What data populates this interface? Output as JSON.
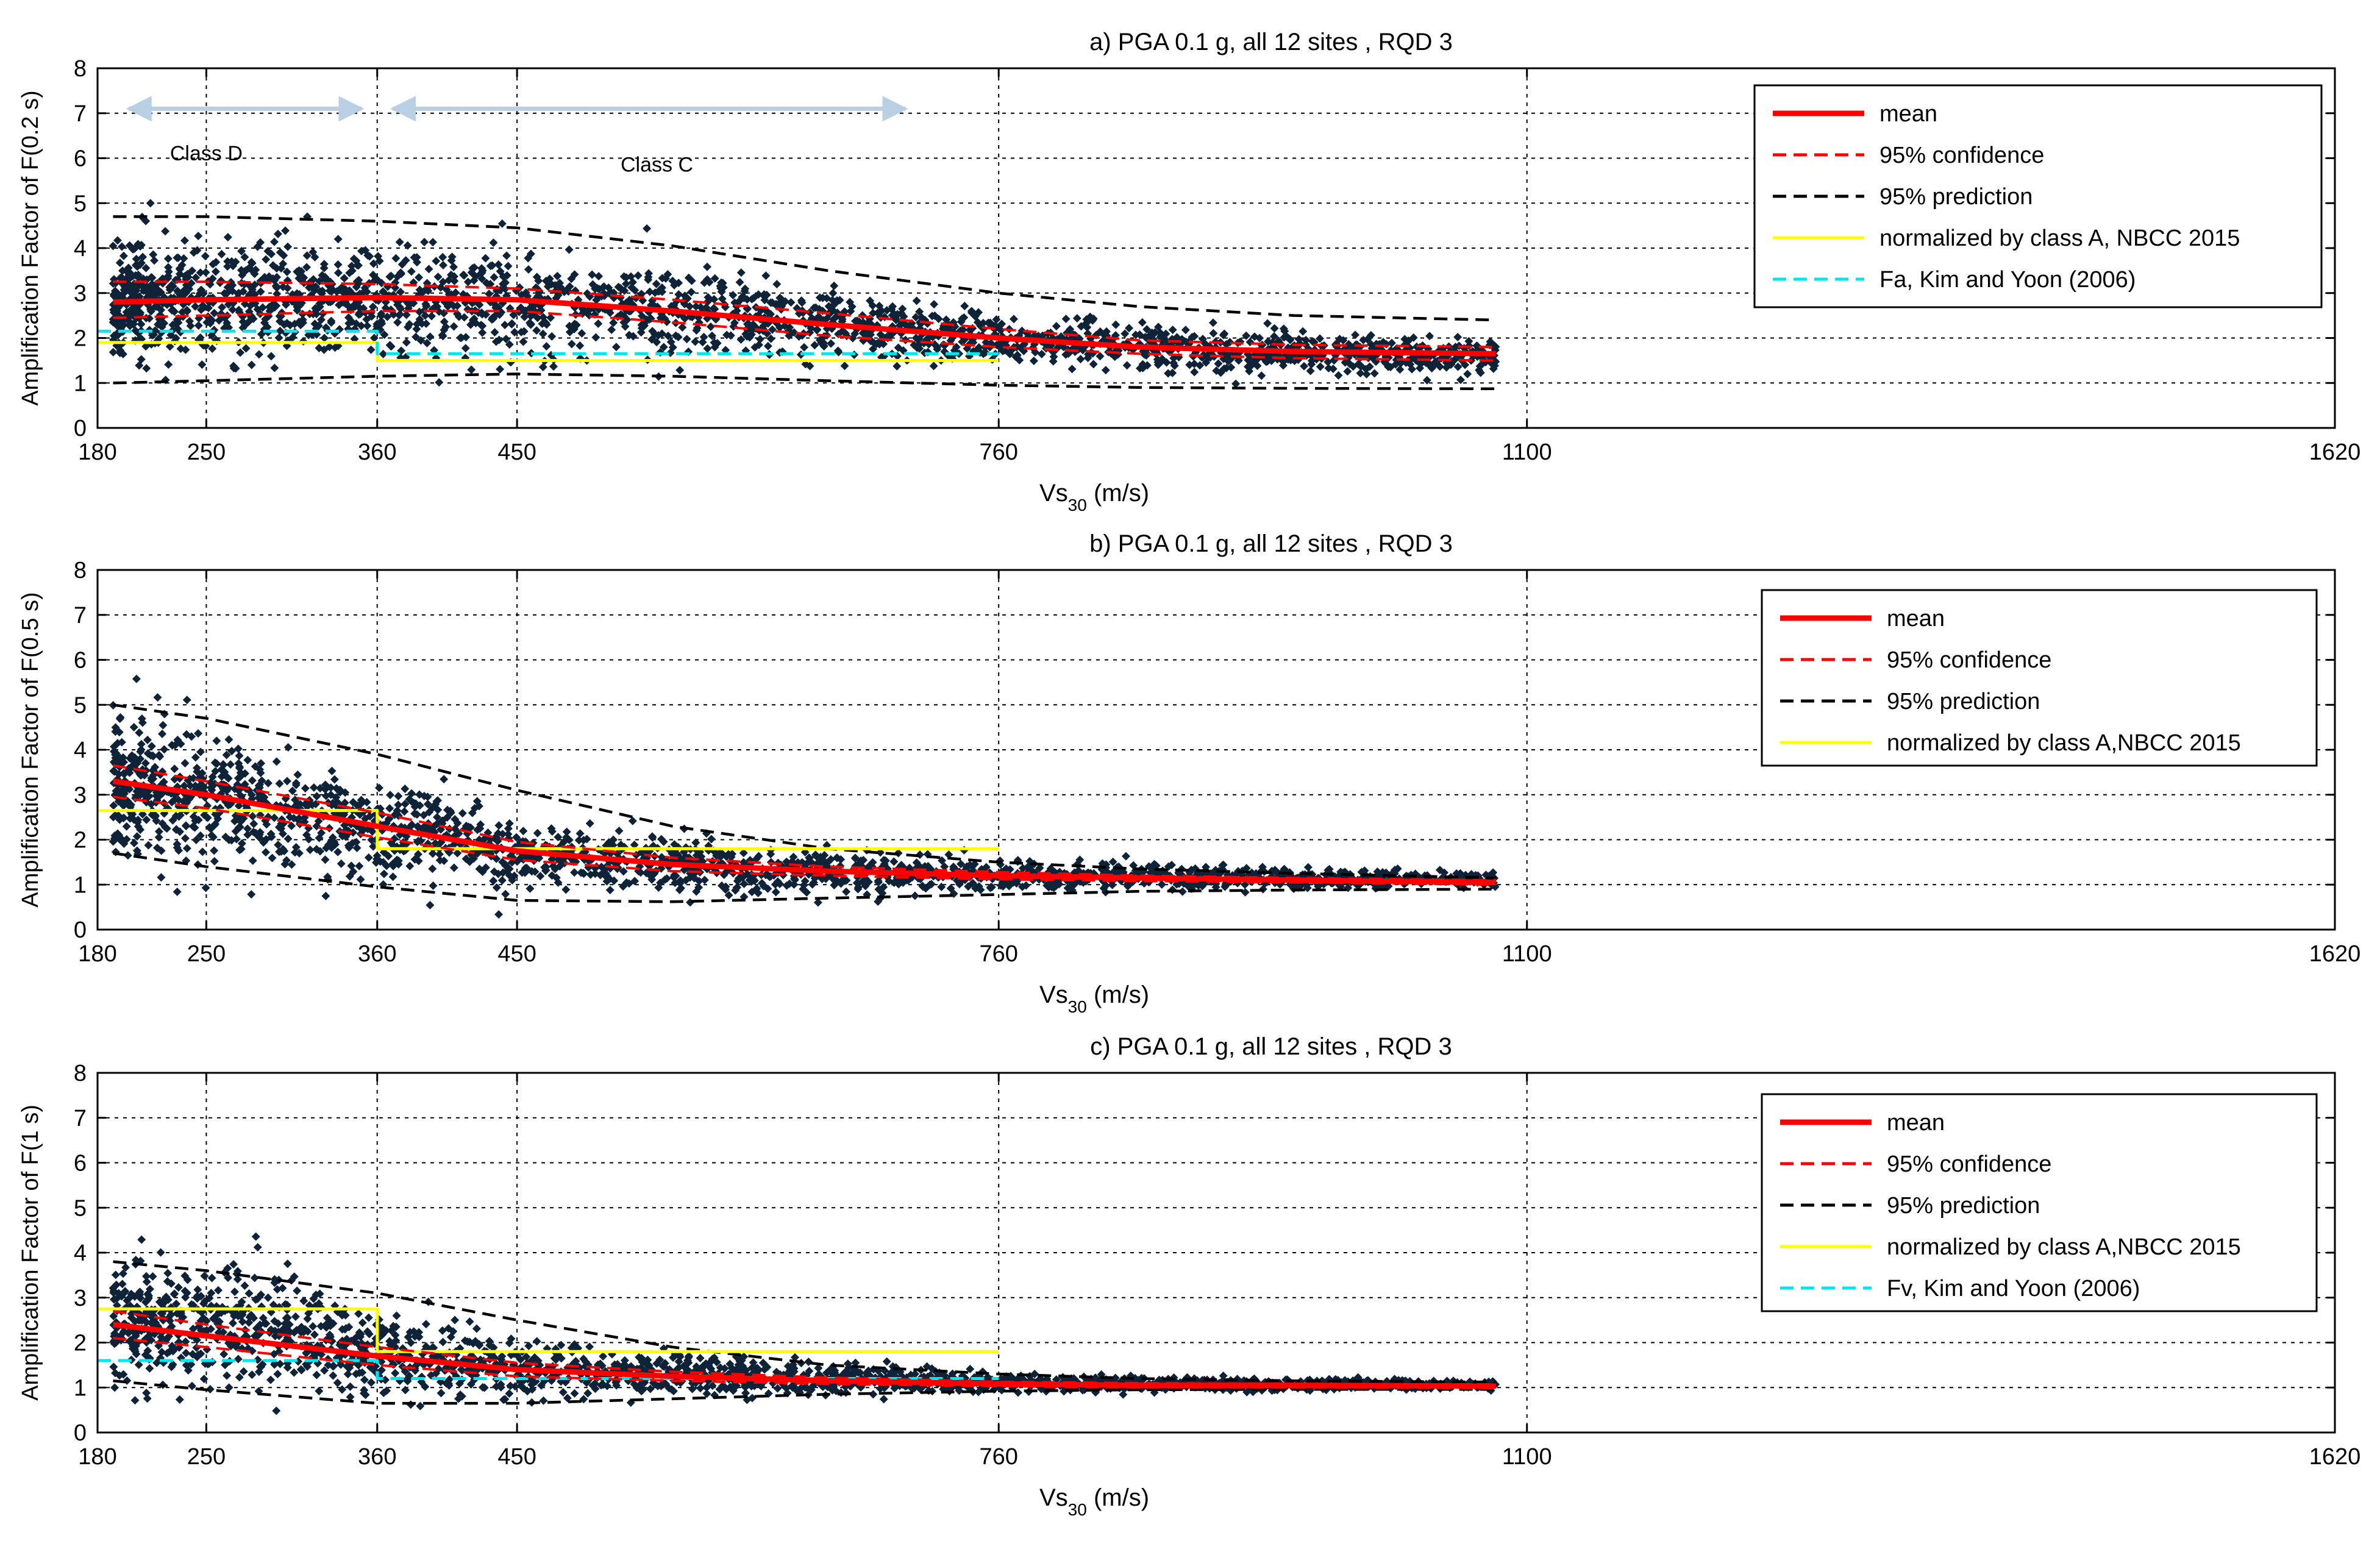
{
  "figure": {
    "note": "Three stacked scatter plots of amplification factor versus Vs30"
  },
  "chart_data": [
    {
      "type": "scatter",
      "title": "a) PGA 0.1 g, all 12 sites , RQD 3",
      "ylabel": "Amplification Factor of F(0.2 s)",
      "xlabel_main": "Vs",
      "xlabel_sub": "30",
      "xlabel_unit": " (m/s)",
      "xlim": [
        180,
        1620
      ],
      "ylim": [
        0,
        8
      ],
      "xticks": [
        180,
        250,
        360,
        450,
        760,
        1100,
        1620
      ],
      "yticks": [
        0,
        1,
        2,
        3,
        4,
        5,
        6,
        7,
        8
      ],
      "annotations": [
        {
          "text": "Class D",
          "x": 250,
          "y": 5.95
        },
        {
          "text": "Class C",
          "x": 540,
          "y": 5.7
        }
      ],
      "class_arrows": [
        {
          "from": 200,
          "to": 350,
          "y": 7.1
        },
        {
          "from": 370,
          "to": 700,
          "y": 7.1
        }
      ],
      "scatter": {
        "x_range": [
          190,
          1080
        ],
        "count": 2200,
        "seed": 11,
        "mean": [
          [
            190,
            2.8
          ],
          [
            360,
            2.9
          ],
          [
            550,
            2.6
          ],
          [
            760,
            2.0
          ],
          [
            900,
            1.7
          ],
          [
            1080,
            1.6
          ]
        ],
        "spread": [
          [
            190,
            1.0
          ],
          [
            450,
            0.9
          ],
          [
            760,
            0.45
          ],
          [
            1080,
            0.3
          ]
        ]
      },
      "series": [
        {
          "name": "mean",
          "role": "mean",
          "color": "#ff0000",
          "x": [
            190,
            250,
            360,
            450,
            550,
            650,
            760,
            850,
            950,
            1080
          ],
          "y": [
            2.8,
            2.85,
            2.9,
            2.85,
            2.6,
            2.3,
            2.0,
            1.8,
            1.7,
            1.65
          ]
        },
        {
          "name": "95% confidence",
          "role": "conf-upper",
          "color": "#ff0000",
          "x": [
            190,
            250,
            360,
            450,
            550,
            650,
            760,
            850,
            950,
            1080
          ],
          "y": [
            3.25,
            3.25,
            3.2,
            3.1,
            2.85,
            2.55,
            2.2,
            1.95,
            1.85,
            1.8
          ]
        },
        {
          "name": "95% confidence",
          "role": "conf-lower",
          "color": "#ff0000",
          "x": [
            190,
            250,
            360,
            450,
            550,
            650,
            760,
            850,
            950,
            1080
          ],
          "y": [
            2.45,
            2.5,
            2.6,
            2.6,
            2.35,
            2.05,
            1.8,
            1.65,
            1.55,
            1.5
          ]
        },
        {
          "name": "95% prediction",
          "role": "pred-upper",
          "color": "#000000",
          "x": [
            190,
            250,
            360,
            450,
            550,
            650,
            760,
            850,
            950,
            1080
          ],
          "y": [
            4.7,
            4.7,
            4.6,
            4.45,
            4.05,
            3.5,
            3.0,
            2.7,
            2.5,
            2.4
          ]
        },
        {
          "name": "95% prediction",
          "role": "pred-lower",
          "color": "#000000",
          "x": [
            190,
            250,
            360,
            450,
            550,
            650,
            760,
            850,
            950,
            1080
          ],
          "y": [
            1.0,
            1.05,
            1.15,
            1.2,
            1.15,
            1.05,
            0.95,
            0.9,
            0.88,
            0.87
          ]
        },
        {
          "name": "normalized by class A, NBCC 2015",
          "role": "nbcc",
          "color": "#ffff00",
          "x": [
            180,
            360,
            360,
            760
          ],
          "y": [
            1.9,
            1.9,
            1.5,
            1.5
          ]
        },
        {
          "name": "Fa, Kim and Yoon (2006)",
          "role": "kim",
          "color": "#00e5ee",
          "x": [
            180,
            360,
            360,
            760
          ],
          "y": [
            2.15,
            2.15,
            1.65,
            1.65
          ]
        }
      ],
      "legend": [
        {
          "label": "mean",
          "color": "#ff0000",
          "style": "solid-thick"
        },
        {
          "label": "95% confidence",
          "color": "#ff0000",
          "style": "dash"
        },
        {
          "label": "95% prediction",
          "color": "#000000",
          "style": "dash"
        },
        {
          "label": "normalized by class A, NBCC 2015",
          "color": "#ffff00",
          "style": "solid"
        },
        {
          "label": "Fa, Kim and Yoon (2006)",
          "color": "#00e5ee",
          "style": "dash"
        }
      ]
    },
    {
      "type": "scatter",
      "title": "b) PGA 0.1 g, all 12 sites , RQD 3",
      "ylabel": "Amplification Factor of F(0.5 s)",
      "xlabel_main": "Vs",
      "xlabel_sub": "30",
      "xlabel_unit": " (m/s)",
      "xlim": [
        180,
        1620
      ],
      "ylim": [
        0,
        8
      ],
      "xticks": [
        180,
        250,
        360,
        450,
        760,
        1100,
        1620
      ],
      "yticks": [
        0,
        1,
        2,
        3,
        4,
        5,
        6,
        7,
        8
      ],
      "annotations": [],
      "class_arrows": [],
      "scatter": {
        "x_range": [
          190,
          1080
        ],
        "count": 2000,
        "seed": 23,
        "mean": [
          [
            190,
            3.3
          ],
          [
            360,
            2.3
          ],
          [
            450,
            1.7
          ],
          [
            600,
            1.3
          ],
          [
            760,
            1.2
          ],
          [
            1080,
            1.1
          ]
        ],
        "spread": [
          [
            190,
            1.2
          ],
          [
            360,
            0.9
          ],
          [
            450,
            0.6
          ],
          [
            760,
            0.25
          ],
          [
            1080,
            0.12
          ]
        ]
      },
      "series": [
        {
          "name": "mean",
          "role": "mean",
          "color": "#ff0000",
          "x": [
            190,
            250,
            360,
            450,
            550,
            650,
            760,
            850,
            950,
            1080
          ],
          "y": [
            3.3,
            3.0,
            2.3,
            1.75,
            1.45,
            1.3,
            1.2,
            1.15,
            1.1,
            1.05
          ]
        },
        {
          "name": "95% confidence",
          "role": "conf-upper",
          "color": "#ff0000",
          "x": [
            190,
            250,
            360,
            450,
            550,
            650,
            760,
            850,
            950,
            1080
          ],
          "y": [
            3.65,
            3.3,
            2.6,
            1.95,
            1.6,
            1.4,
            1.28,
            1.2,
            1.15,
            1.1
          ]
        },
        {
          "name": "95% confidence",
          "role": "conf-lower",
          "color": "#ff0000",
          "x": [
            190,
            250,
            360,
            450,
            550,
            650,
            760,
            850,
            950,
            1080
          ],
          "y": [
            2.95,
            2.7,
            2.05,
            1.55,
            1.3,
            1.2,
            1.12,
            1.08,
            1.05,
            1.0
          ]
        },
        {
          "name": "95% prediction",
          "role": "pred-upper",
          "color": "#000000",
          "x": [
            190,
            250,
            360,
            450,
            550,
            650,
            760,
            850,
            950,
            1080
          ],
          "y": [
            5.0,
            4.7,
            3.9,
            3.1,
            2.3,
            1.8,
            1.5,
            1.35,
            1.25,
            1.15
          ]
        },
        {
          "name": "95% prediction",
          "role": "pred-lower",
          "color": "#000000",
          "x": [
            190,
            250,
            360,
            450,
            550,
            650,
            760,
            850,
            950,
            1080
          ],
          "y": [
            1.7,
            1.4,
            0.95,
            0.65,
            0.62,
            0.7,
            0.78,
            0.85,
            0.88,
            0.9
          ]
        },
        {
          "name": "normalized by class A,NBCC 2015",
          "role": "nbcc",
          "color": "#ffff00",
          "x": [
            180,
            360,
            360,
            760
          ],
          "y": [
            2.65,
            2.65,
            1.8,
            1.8
          ]
        }
      ],
      "legend": [
        {
          "label": "mean",
          "color": "#ff0000",
          "style": "solid-thick"
        },
        {
          "label": "95% confidence",
          "color": "#ff0000",
          "style": "dash"
        },
        {
          "label": "95% prediction",
          "color": "#000000",
          "style": "dash"
        },
        {
          "label": "normalized by class A,NBCC 2015",
          "color": "#ffff00",
          "style": "solid"
        }
      ]
    },
    {
      "type": "scatter",
      "title": "c) PGA 0.1 g, all 12 sites , RQD 3",
      "ylabel": "Amplification Factor of F(1 s)",
      "xlabel_main": "Vs",
      "xlabel_sub": "30",
      "xlabel_unit": " (m/s)",
      "xlim": [
        180,
        1620
      ],
      "ylim": [
        0,
        8
      ],
      "xticks": [
        180,
        250,
        360,
        450,
        760,
        1100,
        1620
      ],
      "yticks": [
        0,
        1,
        2,
        3,
        4,
        5,
        6,
        7,
        8
      ],
      "annotations": [],
      "class_arrows": [],
      "scatter": {
        "x_range": [
          190,
          1080
        ],
        "count": 1900,
        "seed": 37,
        "mean": [
          [
            190,
            2.4
          ],
          [
            300,
            2.3
          ],
          [
            360,
            1.7
          ],
          [
            450,
            1.4
          ],
          [
            760,
            1.1
          ],
          [
            1080,
            1.05
          ]
        ],
        "spread": [
          [
            190,
            1.0
          ],
          [
            300,
            1.1
          ],
          [
            360,
            0.7
          ],
          [
            450,
            0.5
          ],
          [
            760,
            0.15
          ],
          [
            1080,
            0.08
          ]
        ]
      },
      "series": [
        {
          "name": "mean",
          "role": "mean",
          "color": "#ff0000",
          "x": [
            190,
            250,
            360,
            450,
            550,
            650,
            760,
            850,
            950,
            1080
          ],
          "y": [
            2.4,
            2.15,
            1.7,
            1.4,
            1.25,
            1.15,
            1.08,
            1.05,
            1.05,
            1.03
          ]
        },
        {
          "name": "95% confidence",
          "role": "conf-upper",
          "color": "#ff0000",
          "x": [
            190,
            250,
            360,
            450,
            550,
            650,
            760,
            850,
            950,
            1080
          ],
          "y": [
            2.7,
            2.4,
            1.9,
            1.55,
            1.35,
            1.22,
            1.13,
            1.1,
            1.08,
            1.07
          ]
        },
        {
          "name": "95% confidence",
          "role": "conf-lower",
          "color": "#ff0000",
          "x": [
            190,
            250,
            360,
            450,
            550,
            650,
            760,
            850,
            950,
            1080
          ],
          "y": [
            2.1,
            1.9,
            1.5,
            1.25,
            1.15,
            1.08,
            1.03,
            1.0,
            1.0,
            0.99
          ]
        },
        {
          "name": "95% prediction",
          "role": "pred-upper",
          "color": "#000000",
          "x": [
            190,
            250,
            360,
            450,
            550,
            650,
            760,
            850,
            950,
            1080
          ],
          "y": [
            3.8,
            3.6,
            3.1,
            2.5,
            1.9,
            1.5,
            1.3,
            1.2,
            1.15,
            1.12
          ]
        },
        {
          "name": "95% prediction",
          "role": "pred-lower",
          "color": "#000000",
          "x": [
            190,
            250,
            360,
            450,
            550,
            650,
            760,
            850,
            950,
            1080
          ],
          "y": [
            1.15,
            0.95,
            0.65,
            0.65,
            0.75,
            0.85,
            0.92,
            0.95,
            0.96,
            0.96
          ]
        },
        {
          "name": "normalized by class A,NBCC 2015",
          "role": "nbcc",
          "color": "#ffff00",
          "x": [
            180,
            360,
            360,
            760
          ],
          "y": [
            2.75,
            2.75,
            1.8,
            1.8
          ]
        },
        {
          "name": "Fv, Kim and Yoon (2006)",
          "role": "kim",
          "color": "#00e5ee",
          "x": [
            180,
            360,
            360,
            760
          ],
          "y": [
            1.6,
            1.6,
            1.2,
            1.2
          ]
        }
      ],
      "legend": [
        {
          "label": "mean",
          "color": "#ff0000",
          "style": "solid-thick"
        },
        {
          "label": "95% confidence",
          "color": "#ff0000",
          "style": "dash"
        },
        {
          "label": "95% prediction",
          "color": "#000000",
          "style": "dash"
        },
        {
          "label": "normalized by class A,NBCC 2015",
          "color": "#ffff00",
          "style": "solid"
        },
        {
          "label": "Fv, Kim and Yoon (2006)",
          "color": "#00e5ee",
          "style": "dash"
        }
      ]
    }
  ],
  "colors": {
    "scatter": "#0e2338",
    "grid": "#000000",
    "arrow": "#b9cfe3"
  }
}
